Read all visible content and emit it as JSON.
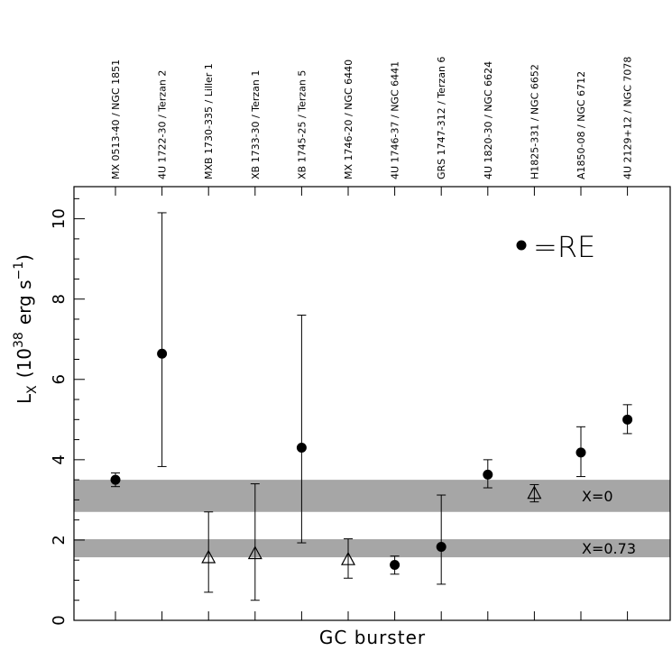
{
  "chart_data": {
    "type": "scatter",
    "xlabel": "GC burster",
    "ylabel": "L",
    "ylabel_sub": "X",
    "ylabel_units": "(10",
    "ylabel_exp": "38",
    "ylabel_units2": "erg s",
    "ylabel_exp2": "−1",
    "ylabel_close": ")",
    "ylim": [
      0,
      10.8
    ],
    "yticks": [
      0,
      2,
      4,
      6,
      8,
      10
    ],
    "legend": {
      "label": "=RE",
      "marker": "filled-circle",
      "position": "top-right"
    },
    "bands": [
      {
        "label": "X=0",
        "y_low": 2.7,
        "y_high": 3.5,
        "color": "#a6a6a6"
      },
      {
        "label": "X=0.73",
        "y_low": 1.57,
        "y_high": 2.02,
        "color": "#a6a6a6"
      }
    ],
    "points": [
      {
        "name": "MX 0513-40 / NGC 1851",
        "y": 3.5,
        "low": 3.33,
        "high": 3.67,
        "marker": "circle"
      },
      {
        "name": "4U 1722-30 / Terzan 2",
        "y": 6.64,
        "low": 3.83,
        "high": 10.15,
        "marker": "circle"
      },
      {
        "name": "MXB 1730-335 / Liller 1",
        "y": 1.55,
        "low": 0.7,
        "high": 2.7,
        "marker": "triangle"
      },
      {
        "name": "XB 1733-30 / Terzan 1",
        "y": 1.65,
        "low": 0.5,
        "high": 3.4,
        "marker": "triangle"
      },
      {
        "name": "XB 1745-25 / Terzan 5",
        "y": 4.3,
        "low": 1.93,
        "high": 7.6,
        "marker": "circle"
      },
      {
        "name": "MX 1746-20 / NGC 6440",
        "y": 1.5,
        "low": 1.05,
        "high": 2.03,
        "marker": "triangle"
      },
      {
        "name": "4U 1746-37 / NGC 6441",
        "y": 1.38,
        "low": 1.15,
        "high": 1.6,
        "marker": "circle"
      },
      {
        "name": "GRS 1747-312 / Terzan 6",
        "y": 1.83,
        "low": 0.9,
        "high": 3.12,
        "marker": "circle"
      },
      {
        "name": "4U 1820-30 / NGC 6624",
        "y": 3.63,
        "low": 3.3,
        "high": 4.0,
        "marker": "circle"
      },
      {
        "name": "H1825-331 / NGC 6652",
        "y": 3.15,
        "low": 2.95,
        "high": 3.38,
        "marker": "triangle"
      },
      {
        "name": "A1850-08 / NGC 6712",
        "y": 4.18,
        "low": 3.58,
        "high": 4.82,
        "marker": "circle"
      },
      {
        "name": "4U 2129+12 / NGC 7078",
        "y": 5.0,
        "low": 4.65,
        "high": 5.37,
        "marker": "circle"
      }
    ]
  }
}
